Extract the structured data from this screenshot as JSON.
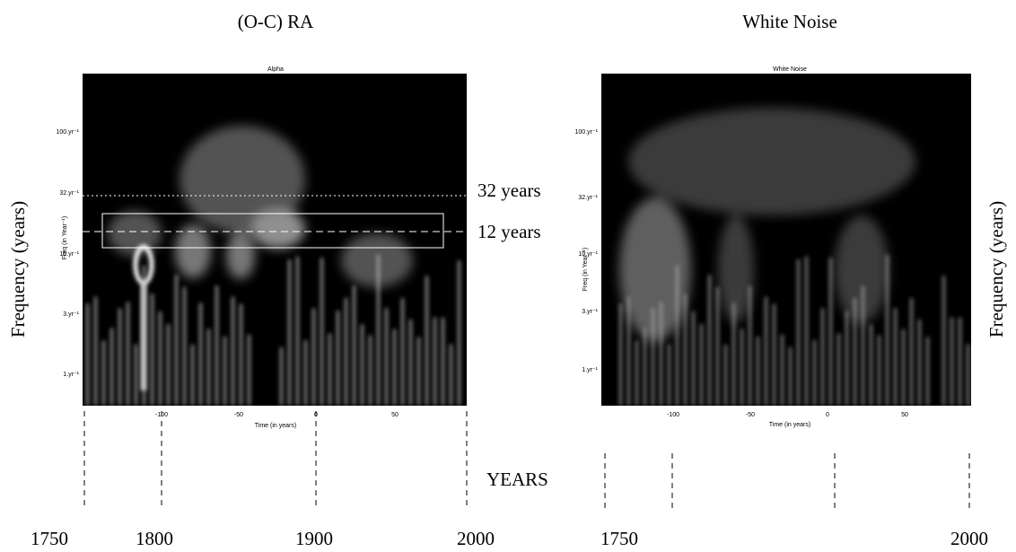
{
  "left": {
    "title": "(O-C) RA",
    "plot_title": "Alpha",
    "y_axis_label": "Freq (in Year⁻¹)",
    "x_axis_label": "Time (in years)",
    "y_ticks": [
      "100.yr⁻¹",
      "32.yr⁻¹",
      "10.yr⁻¹",
      "3.yr⁻¹",
      "1.yr⁻¹"
    ],
    "x_ticks": [
      "-100",
      "-50",
      "0",
      "50"
    ],
    "annotations": [
      "32 years",
      "12 years"
    ],
    "side_label": "Frequency (years)",
    "years": [
      "1750",
      "1800",
      "1900",
      "2000"
    ]
  },
  "middle_label": "YEARS",
  "right": {
    "title": "White Noise",
    "plot_title": "White Noise",
    "y_axis_label": "Freq (in Year⁻¹)",
    "x_axis_label": "Time (in years)",
    "y_ticks": [
      "100.yr⁻¹",
      "32.yr⁻¹",
      "10.yr⁻¹",
      "3.yr⁻¹",
      "1.yr⁻¹"
    ],
    "x_ticks": [
      "-100",
      "-50",
      "0",
      "50"
    ],
    "side_label": "Frequency (years)",
    "years": [
      "1750",
      "2000"
    ]
  }
}
